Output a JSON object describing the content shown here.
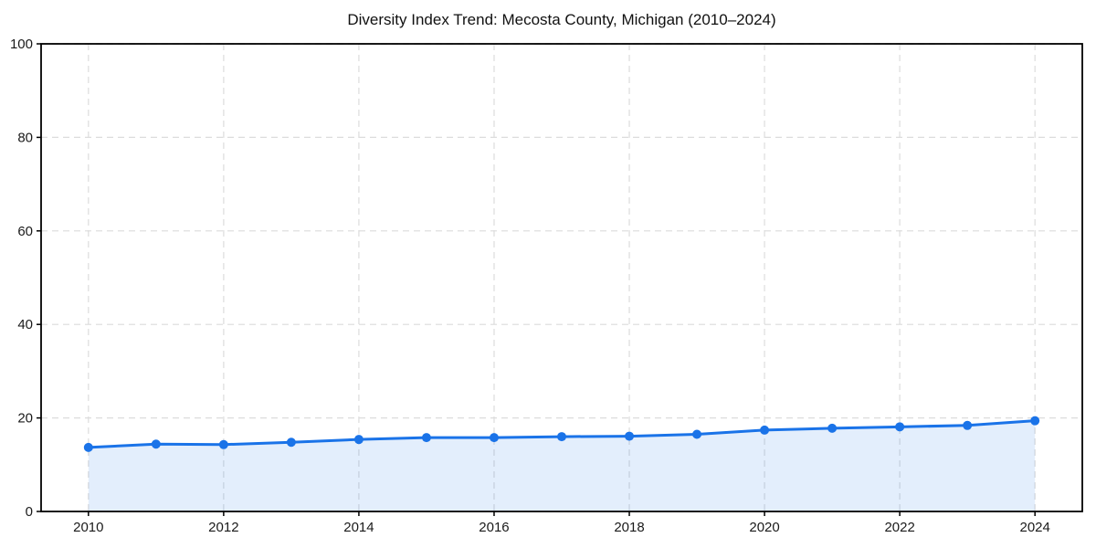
{
  "figure": {
    "background": "#ffffff"
  },
  "chart_data": {
    "type": "area",
    "title": "Diversity Index Trend: Mecosta County, Michigan (2010–2024)",
    "xlabel": "",
    "ylabel": "",
    "x": [
      2010,
      2011,
      2012,
      2013,
      2014,
      2015,
      2016,
      2017,
      2018,
      2019,
      2020,
      2021,
      2022,
      2023,
      2024
    ],
    "series": [
      {
        "name": "Diversity Index",
        "values": [
          13.7,
          14.4,
          14.3,
          14.8,
          15.4,
          15.8,
          15.8,
          16.0,
          16.1,
          16.5,
          17.4,
          17.8,
          18.1,
          18.4,
          19.4
        ]
      }
    ],
    "xlim": [
      2009.3,
      2024.7
    ],
    "ylim": [
      0,
      100
    ],
    "x_ticks": [
      2010,
      2012,
      2014,
      2016,
      2018,
      2020,
      2022,
      2024
    ],
    "y_ticks": [
      0,
      20,
      40,
      60,
      80,
      100
    ],
    "grid": true,
    "grid_style": "dashed",
    "legend": "none",
    "marker": "circle",
    "colors": {
      "line": "#1a73e8",
      "fill": "rgba(26,115,232,0.12)",
      "grid": "#dcdcdc",
      "spine": "#000000",
      "tick_text": "#1a1a1a"
    }
  }
}
